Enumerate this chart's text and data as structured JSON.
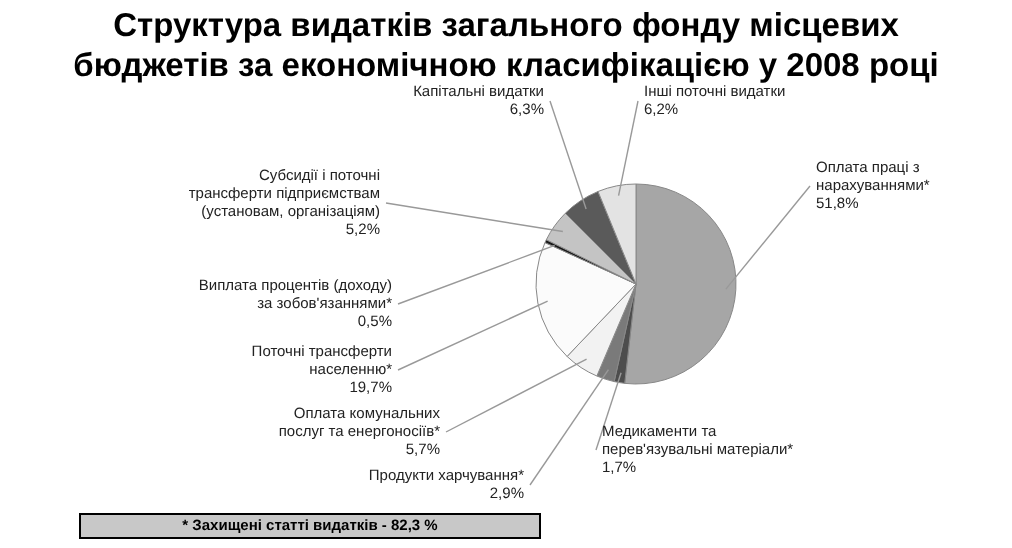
{
  "chart_data": {
    "type": "pie",
    "title": "Структура видатків загального фонду місцевих бюджетів за економічною класифікацією у 2008 році",
    "categories": [
      "Оплата праці з нарахуваннями*",
      "Медикаменти та перев'язувальні матеріали*",
      "Продукти харчування*",
      "Оплата комунальних послуг та енергоносіїв*",
      "Поточні трансферти населенню*",
      "Виплата процентів (доходу) за зобов'язаннями*",
      "Субсидії і поточні трансферти підприємствам (установам, організаціям)",
      "Капітальні видатки",
      "Інші поточні видатки"
    ],
    "values": [
      51.8,
      1.7,
      2.9,
      5.7,
      19.7,
      0.5,
      5.2,
      6.3,
      6.2
    ],
    "value_labels": [
      "51,8%",
      "1,7%",
      "2,9%",
      "5,7%",
      "19,7%",
      "0,5%",
      "5,2%",
      "6,3%",
      "6,2%"
    ],
    "colors": [
      "#a6a6a6",
      "#4d4d4d",
      "#7a7a7a",
      "#f2f2f2",
      "#fbfbfb",
      "#1a1a1a",
      "#c4c4c4",
      "#5a5a5a",
      "#e3e3e3"
    ],
    "annotations": [
      "* Захищені статті видатків - 82,3 %"
    ]
  }
}
